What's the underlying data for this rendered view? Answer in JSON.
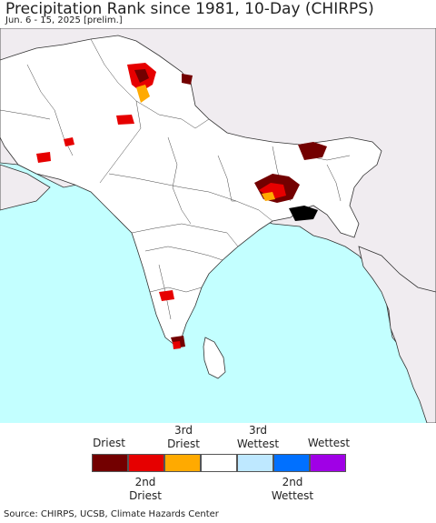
{
  "title": "Precipitation Rank since 1981, 10-Day (CHIRPS)",
  "subtitle": "Jun. 6 - 15, 2025 [prelim.]",
  "map": {
    "colors": {
      "ocean": "#c3ffff",
      "land": "#ffffff",
      "outside_land": "#f0ecf0",
      "borders": "#333333"
    }
  },
  "legend": {
    "top_labels": [
      {
        "line1": "",
        "line2": "Driest"
      },
      {
        "line1": "3rd",
        "line2": "Driest"
      },
      {
        "line1": "3rd",
        "line2": "Wettest"
      },
      {
        "line1": "",
        "line2": "Wettest"
      }
    ],
    "bottom_labels": [
      {
        "line1": "2nd",
        "line2": "Driest"
      },
      {
        "line1": "2nd",
        "line2": "Wettest"
      }
    ],
    "colors": [
      "#730000",
      "#e60000",
      "#ffaa00",
      "#ffffff",
      "#bee8ff",
      "#0070ff",
      "#a000e6"
    ]
  },
  "source": "Source: CHIRPS, UCSB, Climate Hazards Center"
}
